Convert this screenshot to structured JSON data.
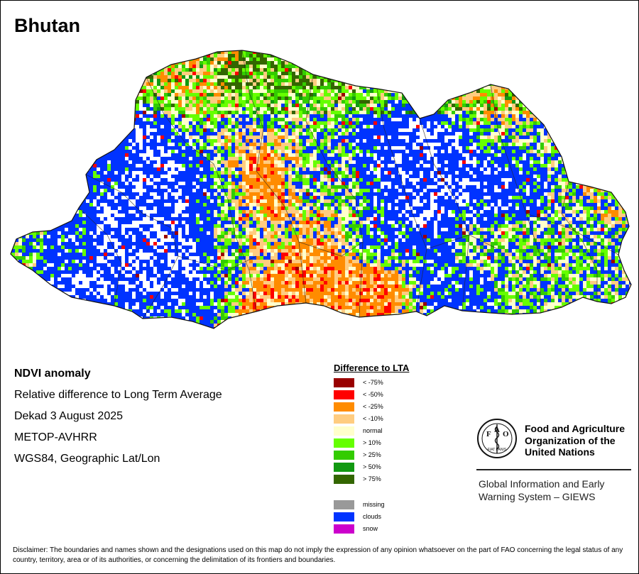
{
  "map": {
    "title": "Bhutan",
    "info": {
      "layer": "NDVI anomaly",
      "description": "Relative difference to Long Term Average",
      "period": "Dekad 3 August 2025",
      "sensor": "METOP-AVHRR",
      "projection": "WGS84, Geographic Lat/Lon"
    },
    "legend": {
      "title": "Difference to LTA",
      "classes": [
        {
          "label": "< -75%",
          "color": "#990000"
        },
        {
          "label": "< -50%",
          "color": "#ff0000"
        },
        {
          "label": "< -25%",
          "color": "#ff8c00"
        },
        {
          "label": "< -10%",
          "color": "#ffcc80"
        },
        {
          "label": "normal",
          "color": "#ffffcc"
        },
        {
          "label": "> 10%",
          "color": "#66ff00"
        },
        {
          "label": "> 25%",
          "color": "#33cc00"
        },
        {
          "label": "> 50%",
          "color": "#119911"
        },
        {
          "label": "> 75%",
          "color": "#336600"
        }
      ],
      "other": [
        {
          "label": "missing",
          "color": "#999999"
        },
        {
          "label": "clouds",
          "color": "#0033ff"
        },
        {
          "label": "snow",
          "color": "#cc00cc"
        }
      ]
    },
    "fao": {
      "logo_letters": [
        "F",
        "A",
        "O"
      ],
      "logo_motto": "FIAT PANIS",
      "name": [
        "Food and Agriculture",
        "Organization of the",
        "United Nations"
      ],
      "giews": [
        "Global Information and Early",
        "Warning System – GIEWS"
      ]
    },
    "disclaimer": "Disclaimer: The boundaries and names shown and the designations used on this map do not imply the expression of any opinion whatsoever on the part of FAO concerning the legal status of any country, territory, area or of its authorities, or concerning the delimitation of its frontiers and boundaries."
  }
}
